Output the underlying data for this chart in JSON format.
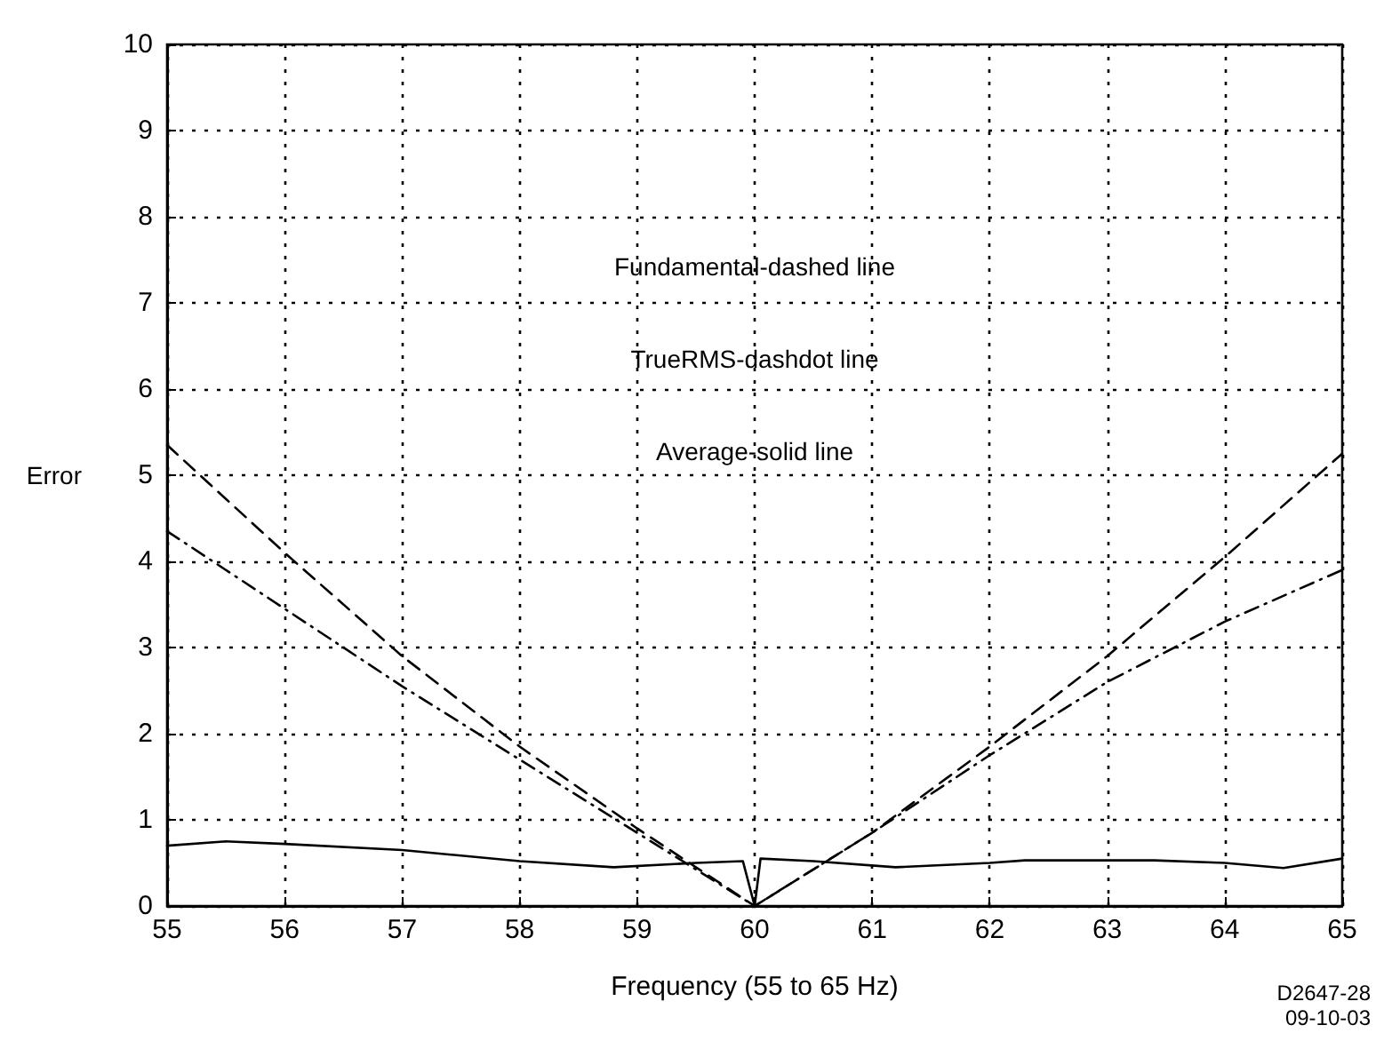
{
  "chart_data": {
    "type": "line",
    "xlabel": "Frequency (55 to 65 Hz)",
    "ylabel": "Error",
    "xlim": [
      55,
      65
    ],
    "xticks": [
      55,
      56,
      57,
      58,
      59,
      60,
      61,
      62,
      63,
      64,
      65
    ],
    "ylim": [
      0,
      10
    ],
    "yticks": [
      0,
      1,
      2,
      3,
      4,
      5,
      6,
      7,
      8,
      9,
      10
    ],
    "grid": true,
    "marker": "none",
    "annotations": [
      "Fundamental-dashed line",
      "TrueRMS-dashdot line",
      "Average-solid line",
      "D2647-28",
      "09-10-03"
    ],
    "series": [
      {
        "color": "#000000",
        "line_style": "dashed",
        "x": [
          55,
          56,
          57,
          58,
          59,
          60,
          61,
          62,
          63,
          64,
          65
        ],
        "values": [
          5.35,
          4.1,
          2.9,
          1.85,
          0.9,
          0,
          0.85,
          1.85,
          2.9,
          4.05,
          5.25
        ]
      },
      {
        "color": "#000000",
        "line_style": "dashdot",
        "x": [
          55,
          56,
          57,
          58,
          59,
          60,
          61,
          62,
          63,
          64,
          65
        ],
        "values": [
          4.35,
          3.45,
          2.55,
          1.7,
          0.85,
          0,
          0.85,
          1.75,
          2.6,
          3.3,
          3.9
        ]
      },
      {
        "color": "#000000",
        "line_style": "solid",
        "x": [
          55,
          55.5,
          56,
          57,
          58,
          58.8,
          59.5,
          59.9,
          60,
          60.05,
          60.5,
          61.2,
          62,
          62.3,
          63.4,
          64,
          64.5,
          65
        ],
        "values": [
          0.7,
          0.75,
          0.72,
          0.65,
          0.52,
          0.45,
          0.5,
          0.52,
          0,
          0.55,
          0.52,
          0.45,
          0.5,
          0.53,
          0.53,
          0.5,
          0.44,
          0.55
        ]
      }
    ]
  }
}
